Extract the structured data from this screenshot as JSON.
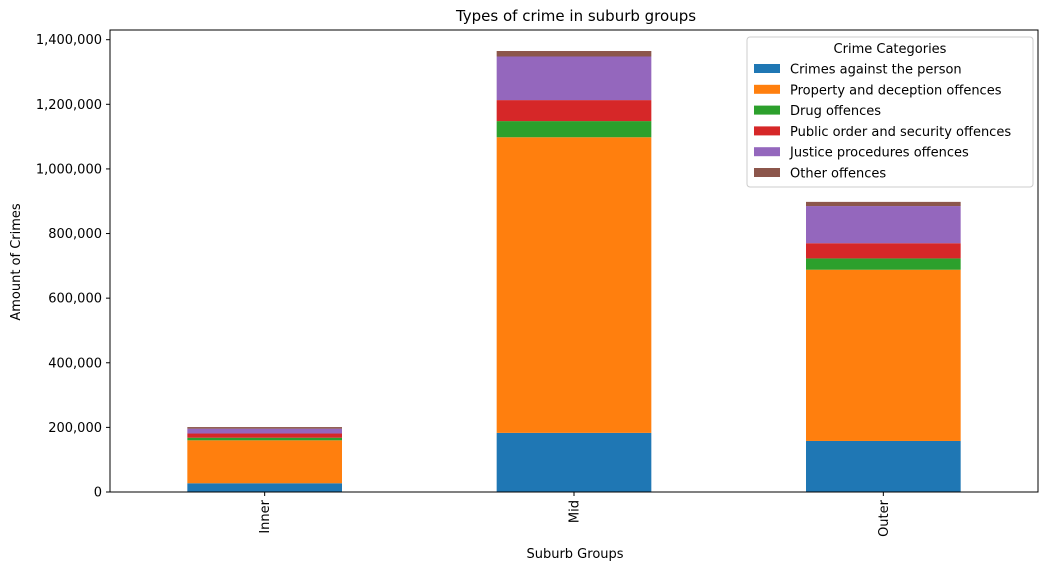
{
  "chart_data": {
    "type": "bar",
    "stacked": true,
    "title": "Types of crime in suburb groups",
    "xlabel": "Suburb Groups",
    "ylabel": "Amount of Crimes",
    "categories": [
      "Inner",
      "Mid",
      "Outer"
    ],
    "ylim": [
      0,
      1430000
    ],
    "yticks": [
      0,
      200000,
      400000,
      600000,
      800000,
      1000000,
      1200000,
      1400000
    ],
    "ytick_labels": [
      "0",
      "200,000",
      "400,000",
      "600,000",
      "800,000",
      "1,000,000",
      "1,200,000",
      "1,400,000"
    ],
    "grid": false,
    "legend": {
      "title": "Crime Categories",
      "placement": "top-right"
    },
    "series": [
      {
        "name": "Crimes against the person",
        "color": "#1f77b4",
        "values": [
          27000,
          183000,
          158000
        ]
      },
      {
        "name": "Property and deception offences",
        "color": "#ff7f0e",
        "values": [
          133000,
          915000,
          530000
        ]
      },
      {
        "name": "Drug offences",
        "color": "#2ca02c",
        "values": [
          8000,
          50000,
          35000
        ]
      },
      {
        "name": "Public order and security offences",
        "color": "#d62728",
        "values": [
          13000,
          65000,
          47000
        ]
      },
      {
        "name": "Justice procedures offences",
        "color": "#9467bd",
        "values": [
          15000,
          135000,
          115000
        ]
      },
      {
        "name": "Other offences",
        "color": "#8c564b",
        "values": [
          5000,
          17000,
          13000
        ]
      }
    ]
  }
}
